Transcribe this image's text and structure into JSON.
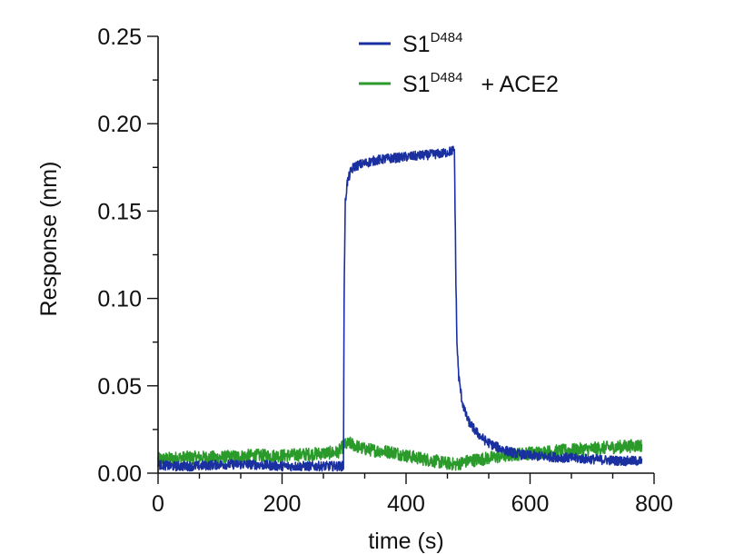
{
  "chart_data": {
    "type": "line",
    "title": "",
    "xlabel": "time (s)",
    "ylabel": "Response (nm)",
    "xlim": [
      0,
      800
    ],
    "ylim": [
      0,
      0.25
    ],
    "x_ticks": [
      0,
      200,
      400,
      600,
      800
    ],
    "x_tick_labels": [
      "0",
      "200",
      "400",
      "600",
      "800"
    ],
    "y_ticks": [
      0,
      0.05,
      0.1,
      0.15,
      0.2,
      0.25
    ],
    "y_tick_labels": [
      "0.00",
      "0.05",
      "0.10",
      "0.15",
      "0.20",
      "0.25"
    ],
    "legend_position": "top-center",
    "series": [
      {
        "name": "S1",
        "superscript": "D484",
        "suffix": "",
        "color": "#1a2fa0",
        "x": [
          0,
          20,
          60,
          100,
          150,
          200,
          250,
          290,
          299,
          300,
          302,
          305,
          310,
          315,
          320,
          330,
          340,
          350,
          370,
          400,
          430,
          460,
          478,
          480,
          482,
          485,
          490,
          495,
          500,
          510,
          520,
          530,
          540,
          560,
          580,
          600,
          650,
          700,
          750,
          780
        ],
        "y": [
          0.005,
          0.004,
          0.004,
          0.005,
          0.005,
          0.004,
          0.004,
          0.004,
          0.004,
          0.1,
          0.155,
          0.166,
          0.172,
          0.175,
          0.176,
          0.177,
          0.178,
          0.179,
          0.18,
          0.181,
          0.182,
          0.183,
          0.185,
          0.12,
          0.075,
          0.055,
          0.042,
          0.035,
          0.03,
          0.025,
          0.021,
          0.018,
          0.016,
          0.013,
          0.011,
          0.01,
          0.009,
          0.008,
          0.007,
          0.007
        ]
      },
      {
        "name": "S1",
        "superscript": "D484",
        "suffix": "+ ACE2",
        "color": "#2a9a2a",
        "x": [
          0,
          50,
          100,
          150,
          200,
          250,
          290,
          300,
          310,
          330,
          350,
          380,
          400,
          430,
          460,
          480,
          500,
          540,
          580,
          620,
          660,
          700,
          740,
          780
        ],
        "y": [
          0.008,
          0.009,
          0.009,
          0.01,
          0.01,
          0.011,
          0.012,
          0.016,
          0.017,
          0.014,
          0.013,
          0.012,
          0.01,
          0.008,
          0.006,
          0.005,
          0.007,
          0.009,
          0.011,
          0.012,
          0.013,
          0.014,
          0.015,
          0.016
        ]
      }
    ]
  }
}
